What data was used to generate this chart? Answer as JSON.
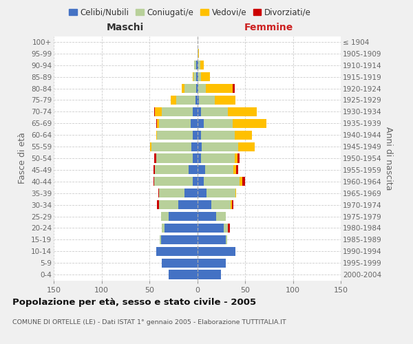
{
  "age_groups": [
    "0-4",
    "5-9",
    "10-14",
    "15-19",
    "20-24",
    "25-29",
    "30-34",
    "35-39",
    "40-44",
    "45-49",
    "50-54",
    "55-59",
    "60-64",
    "65-69",
    "70-74",
    "75-79",
    "80-84",
    "85-89",
    "90-94",
    "95-99",
    "100+"
  ],
  "birth_years": [
    "2000-2004",
    "1995-1999",
    "1990-1994",
    "1985-1989",
    "1980-1984",
    "1975-1979",
    "1970-1974",
    "1965-1969",
    "1960-1964",
    "1955-1959",
    "1950-1954",
    "1945-1949",
    "1940-1944",
    "1935-1939",
    "1930-1934",
    "1925-1929",
    "1920-1924",
    "1915-1919",
    "1910-1914",
    "1905-1909",
    "≤ 1904"
  ],
  "male_celibi": [
    30,
    37,
    43,
    38,
    34,
    30,
    20,
    13,
    5,
    9,
    5,
    6,
    5,
    7,
    5,
    2,
    1,
    1,
    1,
    0,
    0
  ],
  "male_coniugati": [
    0,
    0,
    0,
    1,
    3,
    8,
    20,
    27,
    40,
    35,
    38,
    42,
    37,
    33,
    32,
    20,
    12,
    3,
    2,
    0,
    0
  ],
  "male_vedovi": [
    0,
    0,
    0,
    0,
    0,
    0,
    0,
    0,
    0,
    0,
    0,
    1,
    1,
    2,
    7,
    6,
    3,
    1,
    0,
    0,
    0
  ],
  "male_divorziati": [
    0,
    0,
    0,
    0,
    0,
    0,
    2,
    1,
    1,
    2,
    2,
    0,
    0,
    1,
    1,
    0,
    0,
    0,
    0,
    0,
    0
  ],
  "female_nubili": [
    25,
    30,
    40,
    30,
    28,
    20,
    15,
    10,
    7,
    8,
    4,
    5,
    4,
    7,
    4,
    2,
    1,
    1,
    1,
    0,
    0
  ],
  "female_coniugate": [
    0,
    0,
    0,
    1,
    4,
    10,
    20,
    30,
    37,
    30,
    35,
    38,
    35,
    30,
    28,
    16,
    8,
    3,
    2,
    1,
    0
  ],
  "female_vedove": [
    0,
    0,
    0,
    0,
    0,
    0,
    1,
    1,
    3,
    3,
    3,
    17,
    18,
    35,
    30,
    22,
    28,
    9,
    4,
    1,
    0
  ],
  "female_divorziate": [
    0,
    0,
    0,
    0,
    2,
    0,
    2,
    0,
    3,
    2,
    2,
    0,
    0,
    0,
    0,
    0,
    2,
    0,
    0,
    0,
    0
  ],
  "color_celibi": "#4472c4",
  "color_coniugati": "#b8d09a",
  "color_vedovi": "#ffc000",
  "color_divorziati": "#cc0000",
  "xlim": 150,
  "title": "Popolazione per età, sesso e stato civile - 2005",
  "subtitle": "COMUNE DI ORTELLE (LE) - Dati ISTAT 1° gennaio 2005 - Elaborazione TUTTITALIA.IT",
  "ylabel_left": "Fasce di età",
  "ylabel_right": "Anni di nascita",
  "header_maschi": "Maschi",
  "header_femmine": "Femmine",
  "bg_color": "#f0f0f0",
  "plot_bg_color": "#ffffff",
  "legend_labels": [
    "Celibi/Nubili",
    "Coniugati/e",
    "Vedovi/e",
    "Divorziati/e"
  ]
}
